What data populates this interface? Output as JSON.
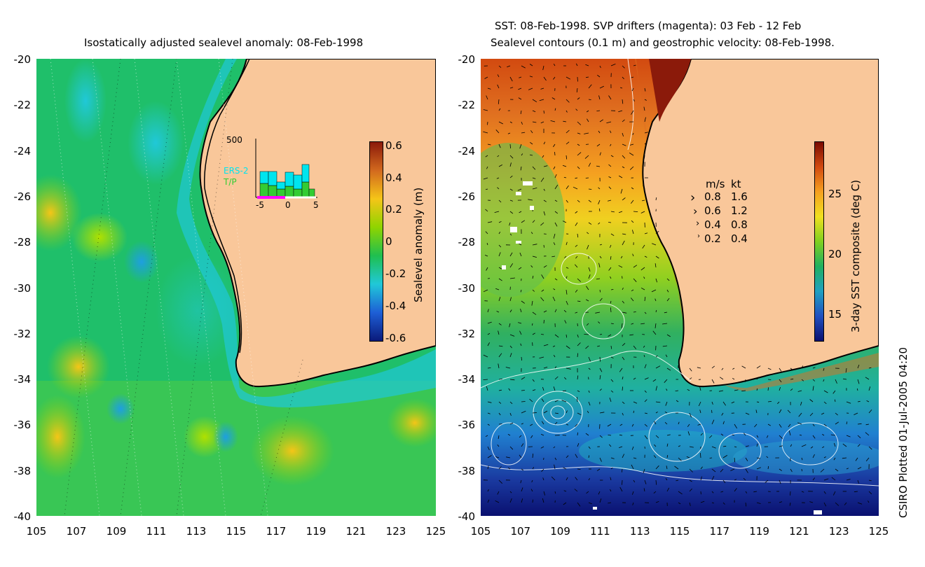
{
  "left_panel": {
    "title": "Isostatically adjusted sealevel anomaly: 08-Feb-1998",
    "y_ticks": [
      "-20",
      "-22",
      "-24",
      "-26",
      "-28",
      "-30",
      "-32",
      "-34",
      "-36",
      "-38",
      "-40"
    ],
    "x_ticks": [
      "105",
      "107",
      "109",
      "111",
      "113",
      "115",
      "117",
      "119",
      "121",
      "123",
      "125"
    ],
    "colorbar": {
      "label": "Sealevel anomaly (m)",
      "ticks": [
        "0.6",
        "0.4",
        "0.2",
        "0",
        "-0.2",
        "-0.4",
        "-0.6"
      ],
      "colors": [
        "#8b1a0a",
        "#d2691e",
        "#f5c518",
        "#8fd400",
        "#1fbf4f",
        "#20c8d8",
        "#1e5fd6",
        "#0a1a7a"
      ]
    },
    "inset": {
      "ymax_label": "500",
      "legend": [
        "ERS-2",
        "T/P"
      ],
      "legend_colors": [
        "#00e5ee",
        "#33cc33"
      ],
      "x_ticks": [
        "-5",
        "0",
        "5"
      ]
    }
  },
  "right_panel": {
    "title_line1": "SST: 08-Feb-1998. SVP drifters (magenta): 03 Feb - 12 Feb",
    "title_line2": "Sealevel contours (0.1 m) and geostrophic velocity: 08-Feb-1998.",
    "y_ticks": [
      "-20",
      "-22",
      "-24",
      "-26",
      "-28",
      "-30",
      "-32",
      "-34",
      "-36",
      "-38",
      "-40"
    ],
    "x_ticks": [
      "105",
      "107",
      "109",
      "111",
      "113",
      "115",
      "117",
      "119",
      "121",
      "123",
      "125"
    ],
    "colorbar": {
      "label": "3-day SST composite (deg C)",
      "ticks": [
        "25",
        "20",
        "15"
      ],
      "colors": [
        "#7a0a00",
        "#d24a10",
        "#f5a020",
        "#f0e020",
        "#80d020",
        "#20b060",
        "#20a0c0",
        "#2050c0",
        "#0a1070"
      ]
    },
    "velocity_legend": {
      "headers": [
        "m/s",
        "kt"
      ],
      "rows": [
        [
          "0.8",
          "1.6"
        ],
        [
          "0.6",
          "1.2"
        ],
        [
          "0.4",
          "0.8"
        ],
        [
          "0.2",
          "0.4"
        ]
      ]
    }
  },
  "credit": "CSIRO Plotted 01-Jul-2005 04:20",
  "colors": {
    "land": "#f9c79a",
    "coast": "#000000"
  }
}
